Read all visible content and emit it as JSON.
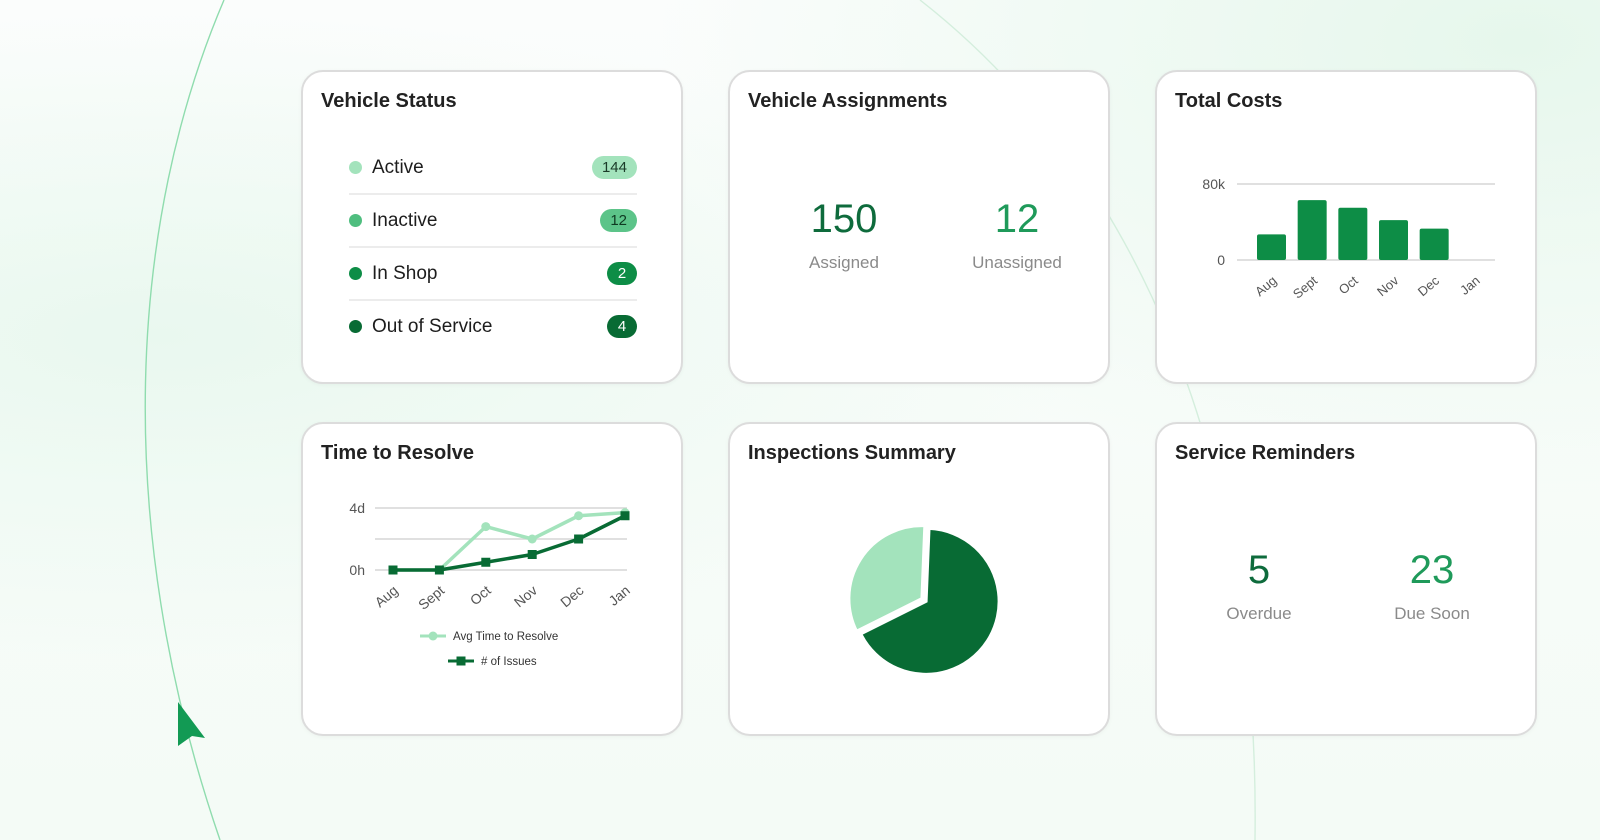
{
  "colors": {
    "light_green": "#a3e3bc",
    "mid_green": "#4fbe7f",
    "brand_green": "#0d8d46",
    "dark_green": "#086b34",
    "kpi_dark": "#0e6b3c",
    "kpi_light": "#1f9a5a"
  },
  "vehicle_status": {
    "title": "Vehicle Status",
    "items": [
      {
        "label": "Active",
        "count": "144",
        "dot": "#a3e3bc",
        "badge_bg": "#a3e3bc",
        "badge_fg": "#1a3b28"
      },
      {
        "label": "Inactive",
        "count": "12",
        "dot": "#4fbe7f",
        "badge_bg": "#5cc489",
        "badge_fg": "#0f3a22"
      },
      {
        "label": "In Shop",
        "count": "2",
        "dot": "#0d8d46",
        "badge_bg": "#0d8d46",
        "badge_fg": "#ffffff"
      },
      {
        "label": "Out of Service",
        "count": "4",
        "dot": "#086b34",
        "badge_bg": "#086b34",
        "badge_fg": "#ffffff"
      }
    ]
  },
  "vehicle_assignments": {
    "title": "Vehicle Assignments",
    "assigned_value": "150",
    "assigned_label": "Assigned",
    "unassigned_value": "12",
    "unassigned_label": "Unassigned"
  },
  "service_reminders": {
    "title": "Service Reminders",
    "overdue_value": "5",
    "overdue_label": "Overdue",
    "due_soon_value": "23",
    "due_soon_label": "Due Soon"
  },
  "total_costs_title": "Total Costs",
  "time_to_resolve_title": "Time to Resolve",
  "inspections_title": "Inspections Summary",
  "chart_data": [
    {
      "id": "total-costs",
      "type": "bar",
      "title": "Total Costs",
      "categories": [
        "Aug",
        "Sept",
        "Oct",
        "Nov",
        "Dec",
        "Jan"
      ],
      "values": [
        27000,
        63000,
        55000,
        42000,
        33000,
        0
      ],
      "ytick_labels": [
        "0",
        "80k"
      ],
      "ylim": [
        0,
        80000
      ],
      "color": "#0d8d46",
      "grid": true
    },
    {
      "id": "time-to-resolve",
      "type": "line",
      "title": "Time to Resolve",
      "categories": [
        "Aug",
        "Sept",
        "Oct",
        "Nov",
        "Dec",
        "Jan"
      ],
      "ytick_labels": [
        "0h",
        "4d"
      ],
      "series": [
        {
          "name": "Avg Time to Resolve",
          "values": [
            0,
            0,
            2.8,
            2.0,
            3.5,
            3.7
          ],
          "color": "#a3e3bc",
          "marker": "circle"
        },
        {
          "name": "# of Issues",
          "values": [
            0,
            0,
            0.5,
            1.0,
            2.0,
            3.5
          ],
          "color": "#086b34",
          "marker": "square"
        }
      ],
      "ylim": [
        0,
        4
      ],
      "legend": "bottom",
      "grid": true
    },
    {
      "id": "inspections-summary",
      "type": "pie",
      "title": "Inspections Summary",
      "slices": [
        {
          "value": 67,
          "color": "#086b34"
        },
        {
          "value": 33,
          "color": "#a3e3bc"
        }
      ]
    }
  ]
}
